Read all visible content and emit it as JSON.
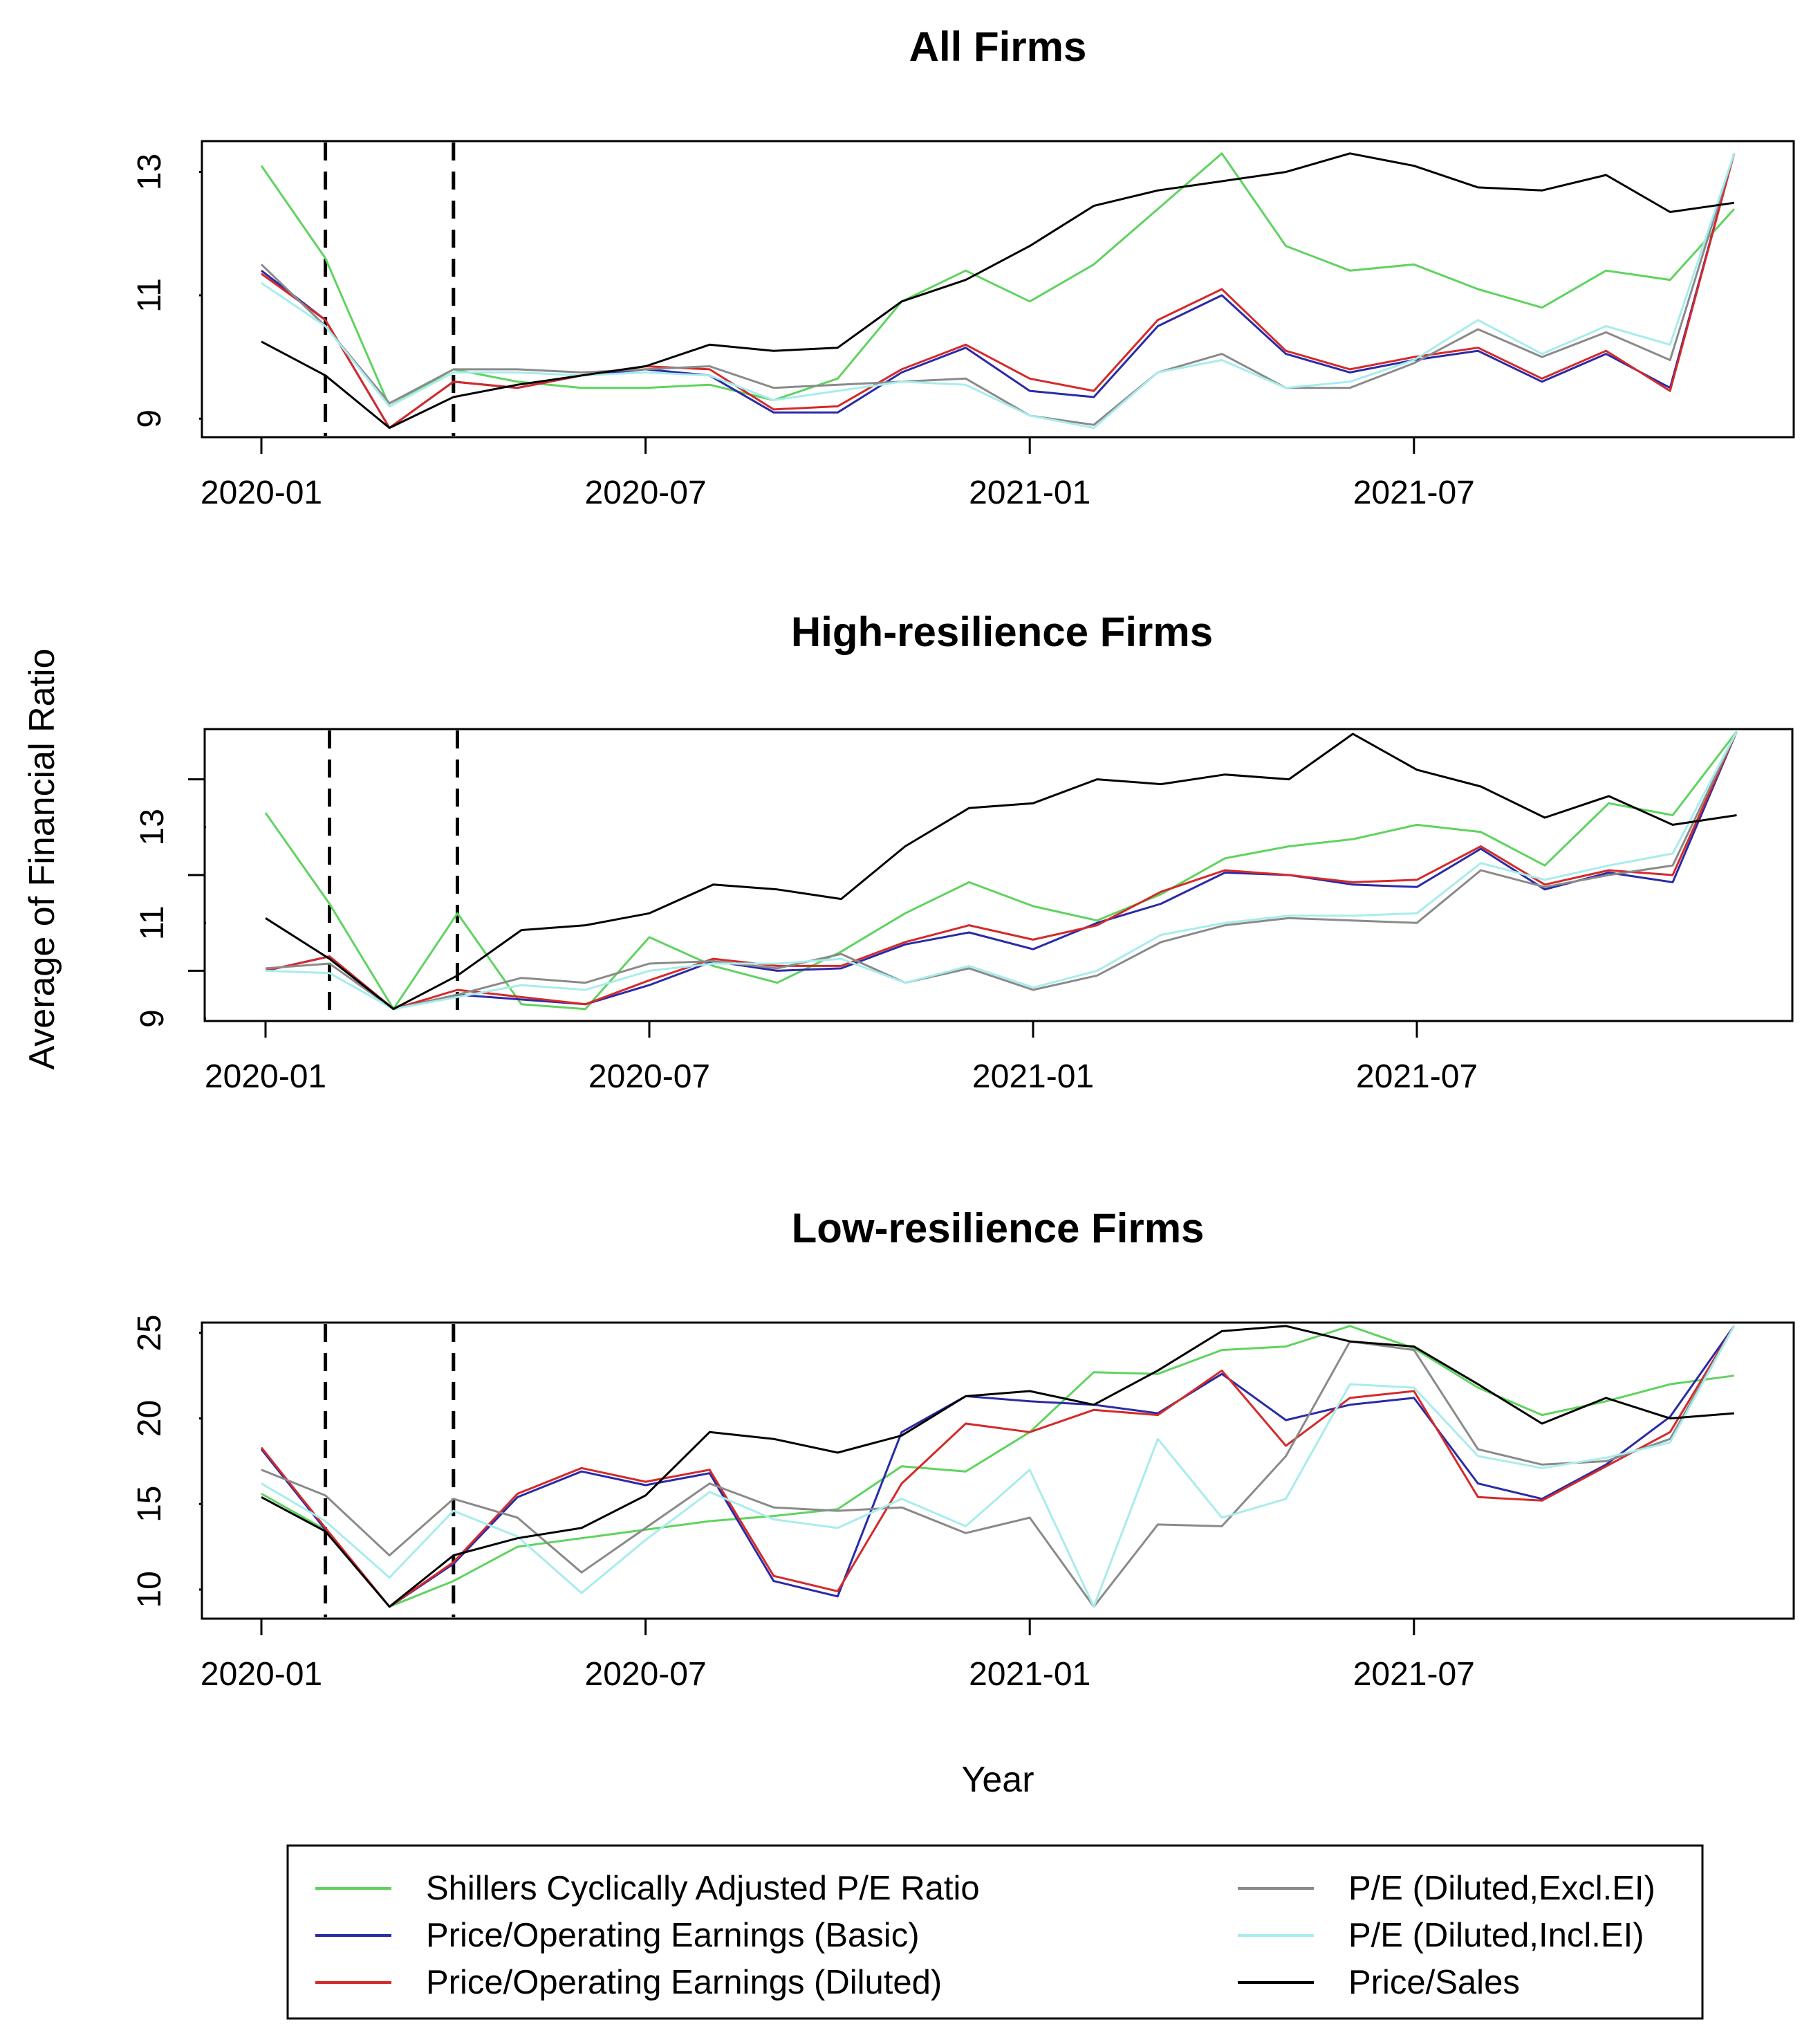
{
  "chart_data": {
    "type": "line",
    "ylabel": "Average of Financial Ratio",
    "xlabel": "Year",
    "x": [
      "2020-01",
      "2020-02",
      "2020-03",
      "2020-04",
      "2020-05",
      "2020-06",
      "2020-07",
      "2020-08",
      "2020-09",
      "2020-10",
      "2020-11",
      "2020-12",
      "2021-01",
      "2021-02",
      "2021-03",
      "2021-04",
      "2021-05",
      "2021-06",
      "2021-07",
      "2021-08",
      "2021-09",
      "2021-10",
      "2021-11",
      "2021-12"
    ],
    "x_ticks": [
      "2020-01",
      "2020-07",
      "2021-01",
      "2021-07"
    ],
    "vlines": [
      1.0,
      3.0
    ],
    "legend_position": "bottom",
    "series_style": [
      {
        "name": "Shillers Cyclically Adjusted P/E Ratio",
        "color": "#5fd35f"
      },
      {
        "name": "Price/Operating Earnings (Basic)",
        "color": "#2a2aa8"
      },
      {
        "name": "Price/Operating Earnings (Diluted)",
        "color": "#d42a2a"
      },
      {
        "name": "P/E (Diluted,Excl.EI)",
        "color": "#8a8a8a"
      },
      {
        "name": "P/E (Diluted,Incl.EI)",
        "color": "#a8ecec"
      },
      {
        "name": "Price/Sales",
        "color": "#000000"
      }
    ],
    "panels": [
      {
        "title": "All Firms",
        "ylim": [
          8.7,
          13.5
        ],
        "yticks": [
          9,
          11,
          13
        ],
        "series": [
          {
            "name": "Shillers Cyclically Adjusted P/E Ratio",
            "values": [
              13.1,
              11.6,
              9.2,
              9.8,
              9.6,
              9.5,
              9.5,
              9.55,
              9.3,
              9.65,
              10.9,
              11.4,
              10.9,
              11.5,
              12.4,
              13.3,
              11.8,
              11.4,
              11.5,
              11.1,
              10.8,
              11.4,
              11.25,
              12.4
            ]
          },
          {
            "name": "Price/Operating Earnings (Basic)",
            "values": [
              11.4,
              10.6,
              8.85,
              9.6,
              9.5,
              9.7,
              9.8,
              9.7,
              9.1,
              9.1,
              9.75,
              10.15,
              9.45,
              9.35,
              10.5,
              11.0,
              10.05,
              9.75,
              9.95,
              10.1,
              9.6,
              10.05,
              9.5,
              13.3
            ]
          },
          {
            "name": "Price/Operating Earnings (Diluted)",
            "values": [
              11.35,
              10.6,
              8.85,
              9.6,
              9.5,
              9.7,
              9.85,
              9.8,
              9.15,
              9.2,
              9.8,
              10.2,
              9.65,
              9.45,
              10.6,
              11.1,
              10.1,
              9.8,
              10.0,
              10.15,
              9.65,
              10.1,
              9.45,
              13.3
            ]
          },
          {
            "name": "P/E (Diluted,Excl.EI)",
            "values": [
              11.5,
              10.5,
              9.25,
              9.8,
              9.8,
              9.75,
              9.8,
              9.85,
              9.5,
              9.55,
              9.6,
              9.65,
              9.05,
              8.9,
              9.75,
              10.05,
              9.5,
              9.5,
              9.9,
              10.45,
              10.0,
              10.4,
              9.95,
              13.3
            ]
          },
          {
            "name": "P/E (Diluted,Incl.EI)",
            "values": [
              11.2,
              10.5,
              9.2,
              9.75,
              9.75,
              9.7,
              9.75,
              9.7,
              9.3,
              9.45,
              9.6,
              9.55,
              9.05,
              8.85,
              9.75,
              9.95,
              9.5,
              9.6,
              9.95,
              10.6,
              10.05,
              10.5,
              10.2,
              13.3
            ]
          },
          {
            "name": "Price/Sales",
            "values": [
              10.25,
              9.7,
              8.85,
              9.35,
              9.55,
              9.7,
              9.85,
              10.2,
              10.1,
              10.15,
              10.9,
              11.25,
              11.8,
              12.45,
              12.7,
              12.85,
              13.0,
              13.3,
              13.1,
              12.75,
              12.7,
              12.95,
              12.35,
              12.5
            ]
          }
        ]
      },
      {
        "title": "High-resilience Firms",
        "ylim": [
          8.95,
          15.05
        ],
        "yticks": [
          9,
          11,
          13
        ],
        "extra_yticks": [
          10,
          12,
          14
        ],
        "series": [
          {
            "name": "Shillers Cyclically Adjusted P/E Ratio",
            "values": [
              13.3,
              11.4,
              9.2,
              11.2,
              9.3,
              9.2,
              10.7,
              10.1,
              9.75,
              10.4,
              11.2,
              11.85,
              11.35,
              11.05,
              11.6,
              12.35,
              12.6,
              12.75,
              13.05,
              12.9,
              12.2,
              13.5,
              13.25,
              15.0
            ]
          },
          {
            "name": "Price/Operating Earnings (Basic)",
            "values": [
              10.0,
              10.3,
              9.2,
              9.5,
              9.4,
              9.3,
              9.7,
              10.2,
              10.0,
              10.05,
              10.55,
              10.8,
              10.45,
              11.0,
              11.4,
              12.05,
              12.0,
              11.8,
              11.75,
              12.55,
              11.7,
              12.05,
              11.85,
              15.0
            ]
          },
          {
            "name": "Price/Operating Earnings (Diluted)",
            "values": [
              10.0,
              10.3,
              9.2,
              9.6,
              9.45,
              9.3,
              9.8,
              10.25,
              10.1,
              10.1,
              10.6,
              10.95,
              10.65,
              10.95,
              11.65,
              12.1,
              12.0,
              11.85,
              11.9,
              12.6,
              11.8,
              12.1,
              12.0,
              15.0
            ]
          },
          {
            "name": "P/E (Diluted,Excl.EI)",
            "values": [
              10.05,
              10.15,
              9.2,
              9.5,
              9.85,
              9.75,
              10.15,
              10.2,
              10.05,
              10.35,
              9.75,
              10.05,
              9.6,
              9.9,
              10.6,
              10.95,
              11.1,
              11.05,
              11.0,
              12.1,
              11.75,
              12.0,
              12.2,
              15.0
            ]
          },
          {
            "name": "P/E (Diluted,Incl.EI)",
            "values": [
              10.0,
              9.95,
              9.2,
              9.45,
              9.7,
              9.6,
              10.0,
              10.15,
              10.15,
              10.25,
              9.75,
              10.1,
              9.65,
              10.0,
              10.75,
              11.0,
              11.15,
              11.15,
              11.2,
              12.25,
              11.9,
              12.2,
              12.45,
              15.0
            ]
          },
          {
            "name": "Price/Sales",
            "values": [
              11.1,
              10.25,
              9.2,
              9.9,
              10.85,
              10.95,
              11.2,
              11.8,
              11.7,
              11.5,
              12.6,
              13.4,
              13.5,
              14.0,
              13.9,
              14.1,
              14.0,
              14.95,
              14.2,
              13.85,
              13.2,
              13.65,
              13.05,
              13.25
            ]
          }
        ]
      },
      {
        "title": "Low-resilience Firms",
        "ylim": [
          8.3,
          25.6
        ],
        "yticks": [
          10,
          15,
          20,
          25
        ],
        "series": [
          {
            "name": "Shillers Cyclically Adjusted P/E Ratio",
            "values": [
              15.6,
              13.5,
              9.0,
              10.5,
              12.5,
              13.0,
              13.5,
              14.0,
              14.3,
              14.7,
              17.2,
              16.9,
              19.2,
              22.7,
              22.6,
              24.0,
              24.2,
              25.4,
              24.1,
              21.8,
              20.2,
              21.0,
              22.0,
              22.5
            ]
          },
          {
            "name": "Price/Operating Earnings (Basic)",
            "values": [
              18.2,
              13.5,
              9.0,
              11.5,
              15.4,
              16.9,
              16.1,
              16.8,
              10.5,
              9.6,
              19.2,
              21.3,
              21.0,
              20.8,
              20.3,
              22.6,
              19.9,
              20.8,
              21.2,
              16.2,
              15.3,
              17.3,
              20.1,
              25.4
            ]
          },
          {
            "name": "Price/Operating Earnings (Diluted)",
            "values": [
              18.3,
              13.6,
              9.0,
              11.6,
              15.6,
              17.1,
              16.3,
              17.0,
              10.8,
              9.9,
              16.2,
              19.7,
              19.2,
              20.5,
              20.2,
              22.8,
              18.4,
              21.2,
              21.6,
              15.4,
              15.2,
              17.2,
              19.2,
              25.4
            ]
          },
          {
            "name": "P/E (Diluted,Excl.EI)",
            "values": [
              17.0,
              15.5,
              12.0,
              15.3,
              14.2,
              11.0,
              13.6,
              16.2,
              14.8,
              14.6,
              14.8,
              13.3,
              14.2,
              9.0,
              13.8,
              13.7,
              17.8,
              24.5,
              24.0,
              18.2,
              17.3,
              17.5,
              18.8,
              25.4
            ]
          },
          {
            "name": "P/E (Diluted,Incl.EI)",
            "values": [
              16.2,
              14.0,
              10.7,
              14.6,
              13.1,
              9.8,
              12.9,
              15.7,
              14.1,
              13.6,
              15.3,
              13.7,
              17.0,
              9.0,
              18.8,
              14.2,
              15.3,
              22.0,
              21.8,
              17.8,
              17.1,
              17.7,
              18.6,
              25.4
            ]
          },
          {
            "name": "Price/Sales",
            "values": [
              15.4,
              13.4,
              9.0,
              12.0,
              13.0,
              13.6,
              15.5,
              19.2,
              18.8,
              18.0,
              19.0,
              21.3,
              21.6,
              20.8,
              22.8,
              25.1,
              25.4,
              24.5,
              24.2,
              22.0,
              19.7,
              21.2,
              20.0,
              20.3
            ]
          }
        ]
      }
    ]
  }
}
